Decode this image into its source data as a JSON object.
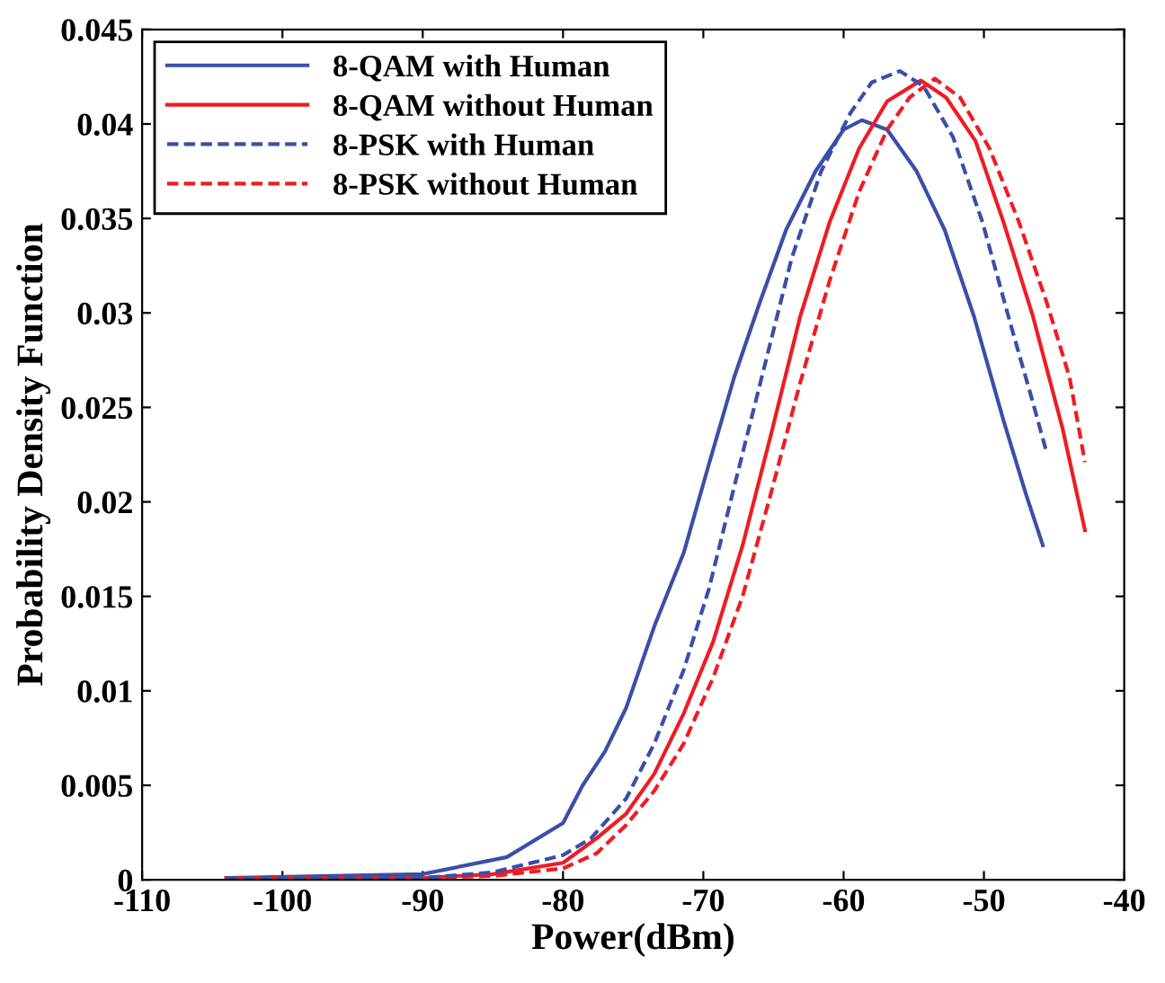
{
  "chart_data": {
    "type": "line",
    "xlabel": "Power(dBm)",
    "ylabel": "Probability Density Function",
    "xlim": [
      -110,
      -40
    ],
    "xticks": [
      -110,
      -100,
      -90,
      -80,
      -70,
      -60,
      -50,
      -40
    ],
    "ylim": [
      0,
      0.045
    ],
    "yticks": [
      0,
      0.005,
      0.01,
      0.015,
      0.02,
      0.025,
      0.03,
      0.035,
      0.04,
      0.045
    ],
    "grid": false,
    "legend": "top left",
    "marker": "none",
    "series": [
      {
        "name": "8-QAM with Human",
        "color": "#3a4fa8",
        "line_style": "solid",
        "x": [
          -104,
          -90,
          -84,
          -80,
          -78.6,
          -77,
          -75.5,
          -73.5,
          -71.4,
          -69.6,
          -67.8,
          -66,
          -64.1,
          -62,
          -60,
          -58.7,
          -56.9,
          -54.8,
          -52.8,
          -50.7,
          -48.6,
          -47,
          -45.8
        ],
        "values": [
          0.0001,
          0.0003,
          0.0012,
          0.003,
          0.005,
          0.0068,
          0.0091,
          0.0134,
          0.0173,
          0.022,
          0.0266,
          0.0305,
          0.0344,
          0.0375,
          0.0397,
          0.0402,
          0.0397,
          0.0375,
          0.0344,
          0.0298,
          0.0243,
          0.0204,
          0.0177
        ]
      },
      {
        "name": "8-QAM without Human",
        "color": "#ee1c24",
        "line_style": "solid",
        "x": [
          -104,
          -90,
          -85,
          -80,
          -77.6,
          -75.5,
          -73.5,
          -71.4,
          -69.3,
          -67.2,
          -65.2,
          -63.1,
          -61,
          -58.9,
          -56.9,
          -54.5,
          -52.7,
          -50.6,
          -48.6,
          -46.5,
          -44.4,
          -42.8
        ],
        "values": [
          0.0001,
          0.0001,
          0.0003,
          0.0009,
          0.0022,
          0.0035,
          0.0056,
          0.0088,
          0.0126,
          0.0177,
          0.0235,
          0.0298,
          0.0348,
          0.0387,
          0.0412,
          0.0423,
          0.0414,
          0.0391,
          0.0348,
          0.0298,
          0.0239,
          0.0185
        ]
      },
      {
        "name": "8-PSK with Human",
        "color": "#3a4fa8",
        "line_style": "dashed",
        "x": [
          -104,
          -90,
          -85,
          -80,
          -78,
          -75.5,
          -73.5,
          -71.4,
          -69.6,
          -67.8,
          -65.7,
          -63.7,
          -61.6,
          -59.5,
          -58,
          -56,
          -54.3,
          -52.2,
          -50.1,
          -48.1,
          -46.6,
          -45.6
        ],
        "values": [
          0.0001,
          0.0001,
          0.0004,
          0.0013,
          0.0022,
          0.0043,
          0.0072,
          0.0111,
          0.0154,
          0.0208,
          0.027,
          0.0329,
          0.0375,
          0.0406,
          0.0422,
          0.0428,
          0.042,
          0.0393,
          0.0348,
          0.0294,
          0.0255,
          0.0228
        ]
      },
      {
        "name": "8-PSK without Human",
        "color": "#ee1c24",
        "line_style": "dashed",
        "x": [
          -104,
          -90,
          -85,
          -80,
          -77.6,
          -75.5,
          -73.5,
          -71.4,
          -69.3,
          -67.2,
          -65.2,
          -63.1,
          -61,
          -58.9,
          -56.9,
          -55.3,
          -53.5,
          -51.7,
          -49.6,
          -47.5,
          -45.5,
          -43.9,
          -42.8
        ],
        "values": [
          0.0001,
          0.0001,
          0.0002,
          0.0006,
          0.0014,
          0.0029,
          0.0047,
          0.0072,
          0.0107,
          0.015,
          0.0204,
          0.0263,
          0.0317,
          0.0364,
          0.0397,
          0.0414,
          0.0424,
          0.0414,
          0.0387,
          0.0348,
          0.0305,
          0.0266,
          0.0221
        ]
      }
    ]
  }
}
